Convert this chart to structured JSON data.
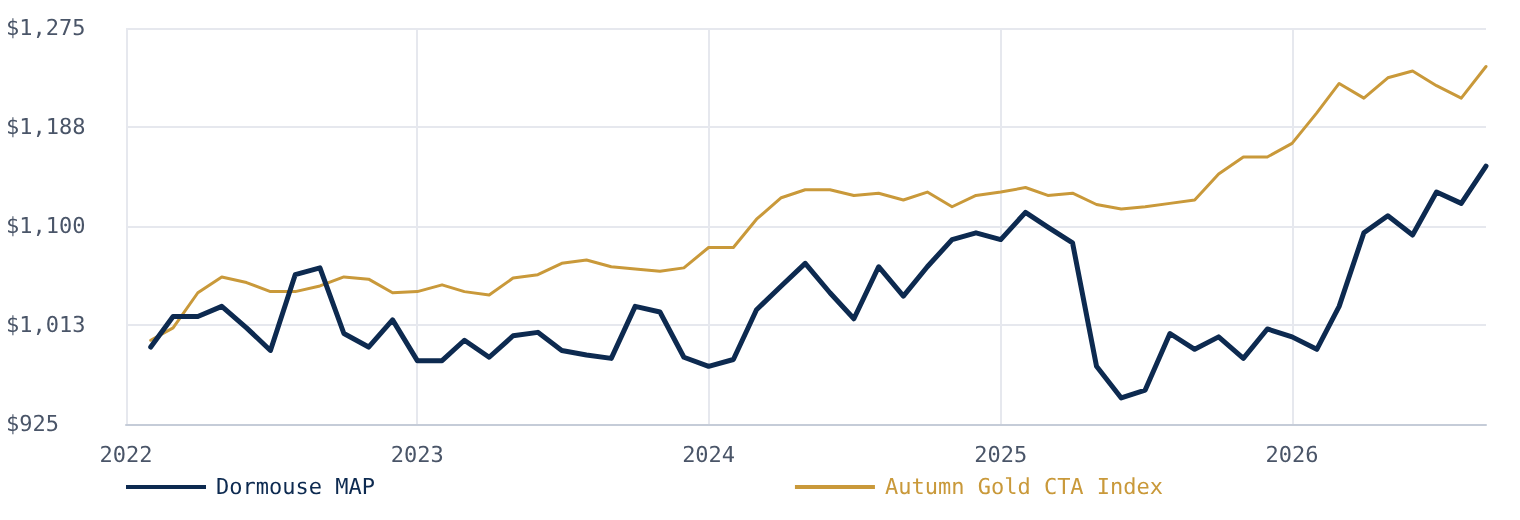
{
  "chart_data": {
    "type": "line",
    "legend": "bottom",
    "grid": true,
    "marker": "none",
    "line_style": "solid",
    "xlim": [
      "2022-01",
      "2026-09"
    ],
    "xticks": [
      "2022",
      "2023",
      "2024",
      "2025",
      "2026"
    ],
    "ylim": [
      925,
      1275
    ],
    "yticks": [
      {
        "value": 925,
        "label": "$925"
      },
      {
        "value": 1012.5,
        "label": "$1,013"
      },
      {
        "value": 1100,
        "label": "$1,100"
      },
      {
        "value": 1187.5,
        "label": "$1,188"
      },
      {
        "value": 1275,
        "label": "$1,275"
      }
    ],
    "x": [
      "2022-02",
      "2022-03",
      "2022-04",
      "2022-05",
      "2022-06",
      "2022-07",
      "2022-08",
      "2022-09",
      "2022-10",
      "2022-11",
      "2022-12",
      "2023-01",
      "2023-02",
      "2023-03",
      "2023-04",
      "2023-05",
      "2023-06",
      "2023-07",
      "2023-08",
      "2023-09",
      "2023-10",
      "2023-11",
      "2023-12",
      "2024-01",
      "2024-02",
      "2024-03",
      "2024-04",
      "2024-05",
      "2024-06",
      "2024-07",
      "2024-08",
      "2024-09",
      "2024-10",
      "2024-11",
      "2024-12",
      "2025-01",
      "2025-02",
      "2025-03",
      "2025-04",
      "2025-05",
      "2025-06",
      "2025-07",
      "2025-08",
      "2025-09",
      "2025-10",
      "2025-11",
      "2025-12",
      "2026-01",
      "2026-02",
      "2026-03",
      "2026-04",
      "2026-05",
      "2026-06",
      "2026-07",
      "2026-08",
      "2026-09"
    ],
    "series": [
      {
        "name": "Dormouse MAP",
        "color": "#0d2a50",
        "values": [
          993,
          1020,
          1020,
          1029,
          1010,
          990,
          1057,
          1063,
          1005,
          993,
          1017,
          981,
          981,
          999,
          984,
          1003,
          1006,
          990,
          986,
          983,
          1029,
          1024,
          984,
          976,
          982,
          1026,
          1047,
          1067,
          1041,
          1018,
          1064,
          1038,
          1064,
          1088,
          1094,
          1088,
          1112,
          1099,
          1085,
          976,
          948,
          955,
          1005,
          991,
          1002,
          983,
          1009,
          1002,
          991,
          1029,
          1094,
          1109,
          1092,
          1130,
          1120,
          1153
        ]
      },
      {
        "name": "Autumn Gold CTA Index",
        "color": "#c9993a",
        "values": [
          999,
          1010,
          1041,
          1055,
          1050,
          1042,
          1042,
          1047,
          1055,
          1053,
          1041,
          1042,
          1048,
          1042,
          1039,
          1054,
          1057,
          1067,
          1070,
          1064,
          1062,
          1060,
          1063,
          1081,
          1081,
          1106,
          1125,
          1132,
          1132,
          1127,
          1129,
          1123,
          1130,
          1117,
          1127,
          1130,
          1134,
          1127,
          1129,
          1119,
          1115,
          1117,
          1120,
          1123,
          1146,
          1161,
          1161,
          1173,
          1200,
          1226,
          1213,
          1231,
          1237,
          1224,
          1213,
          1241
        ]
      }
    ]
  }
}
